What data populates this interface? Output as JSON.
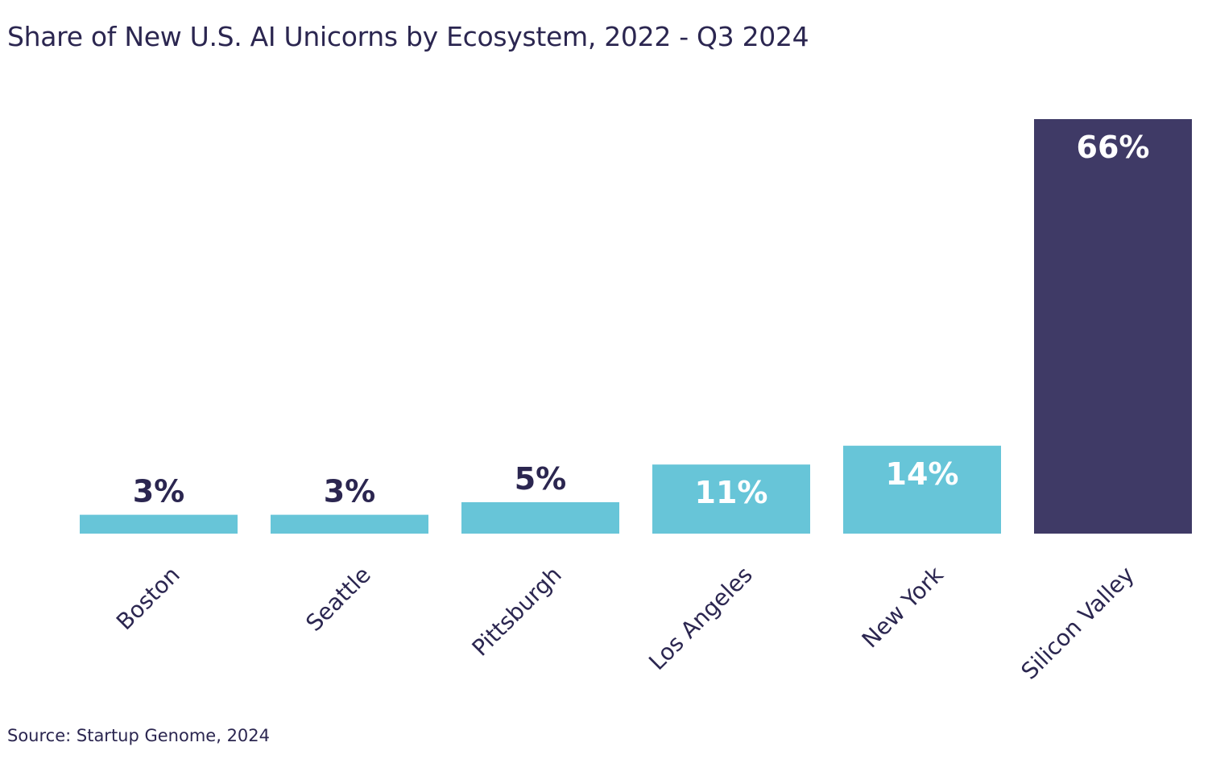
{
  "chart_data": {
    "type": "bar",
    "title": "Share of New U.S. AI Unicorns by Ecosystem, 2022 - Q3 2024",
    "source": "Source: Startup Genome, 2024",
    "xlabel": "",
    "ylabel": "",
    "ylim": [
      0,
      66
    ],
    "grid": false,
    "legend": "none",
    "categories": [
      "Boston",
      "Seattle",
      "Pittsburgh",
      "Los Angeles",
      "New York",
      "Silicon Valley"
    ],
    "values": [
      3,
      3,
      5,
      11,
      14,
      66
    ],
    "data_labels": [
      "3%",
      "3%",
      "5%",
      "11%",
      "14%",
      "66%"
    ],
    "colors": [
      "#67c5d8",
      "#67c5d8",
      "#67c5d8",
      "#67c5d8",
      "#67c5d8",
      "#3f3a66"
    ],
    "label_colors": [
      "#2b2650",
      "#2b2650",
      "#2b2650",
      "#ffffff",
      "#ffffff",
      "#ffffff"
    ],
    "label_inside": [
      false,
      false,
      false,
      true,
      true,
      true
    ]
  }
}
